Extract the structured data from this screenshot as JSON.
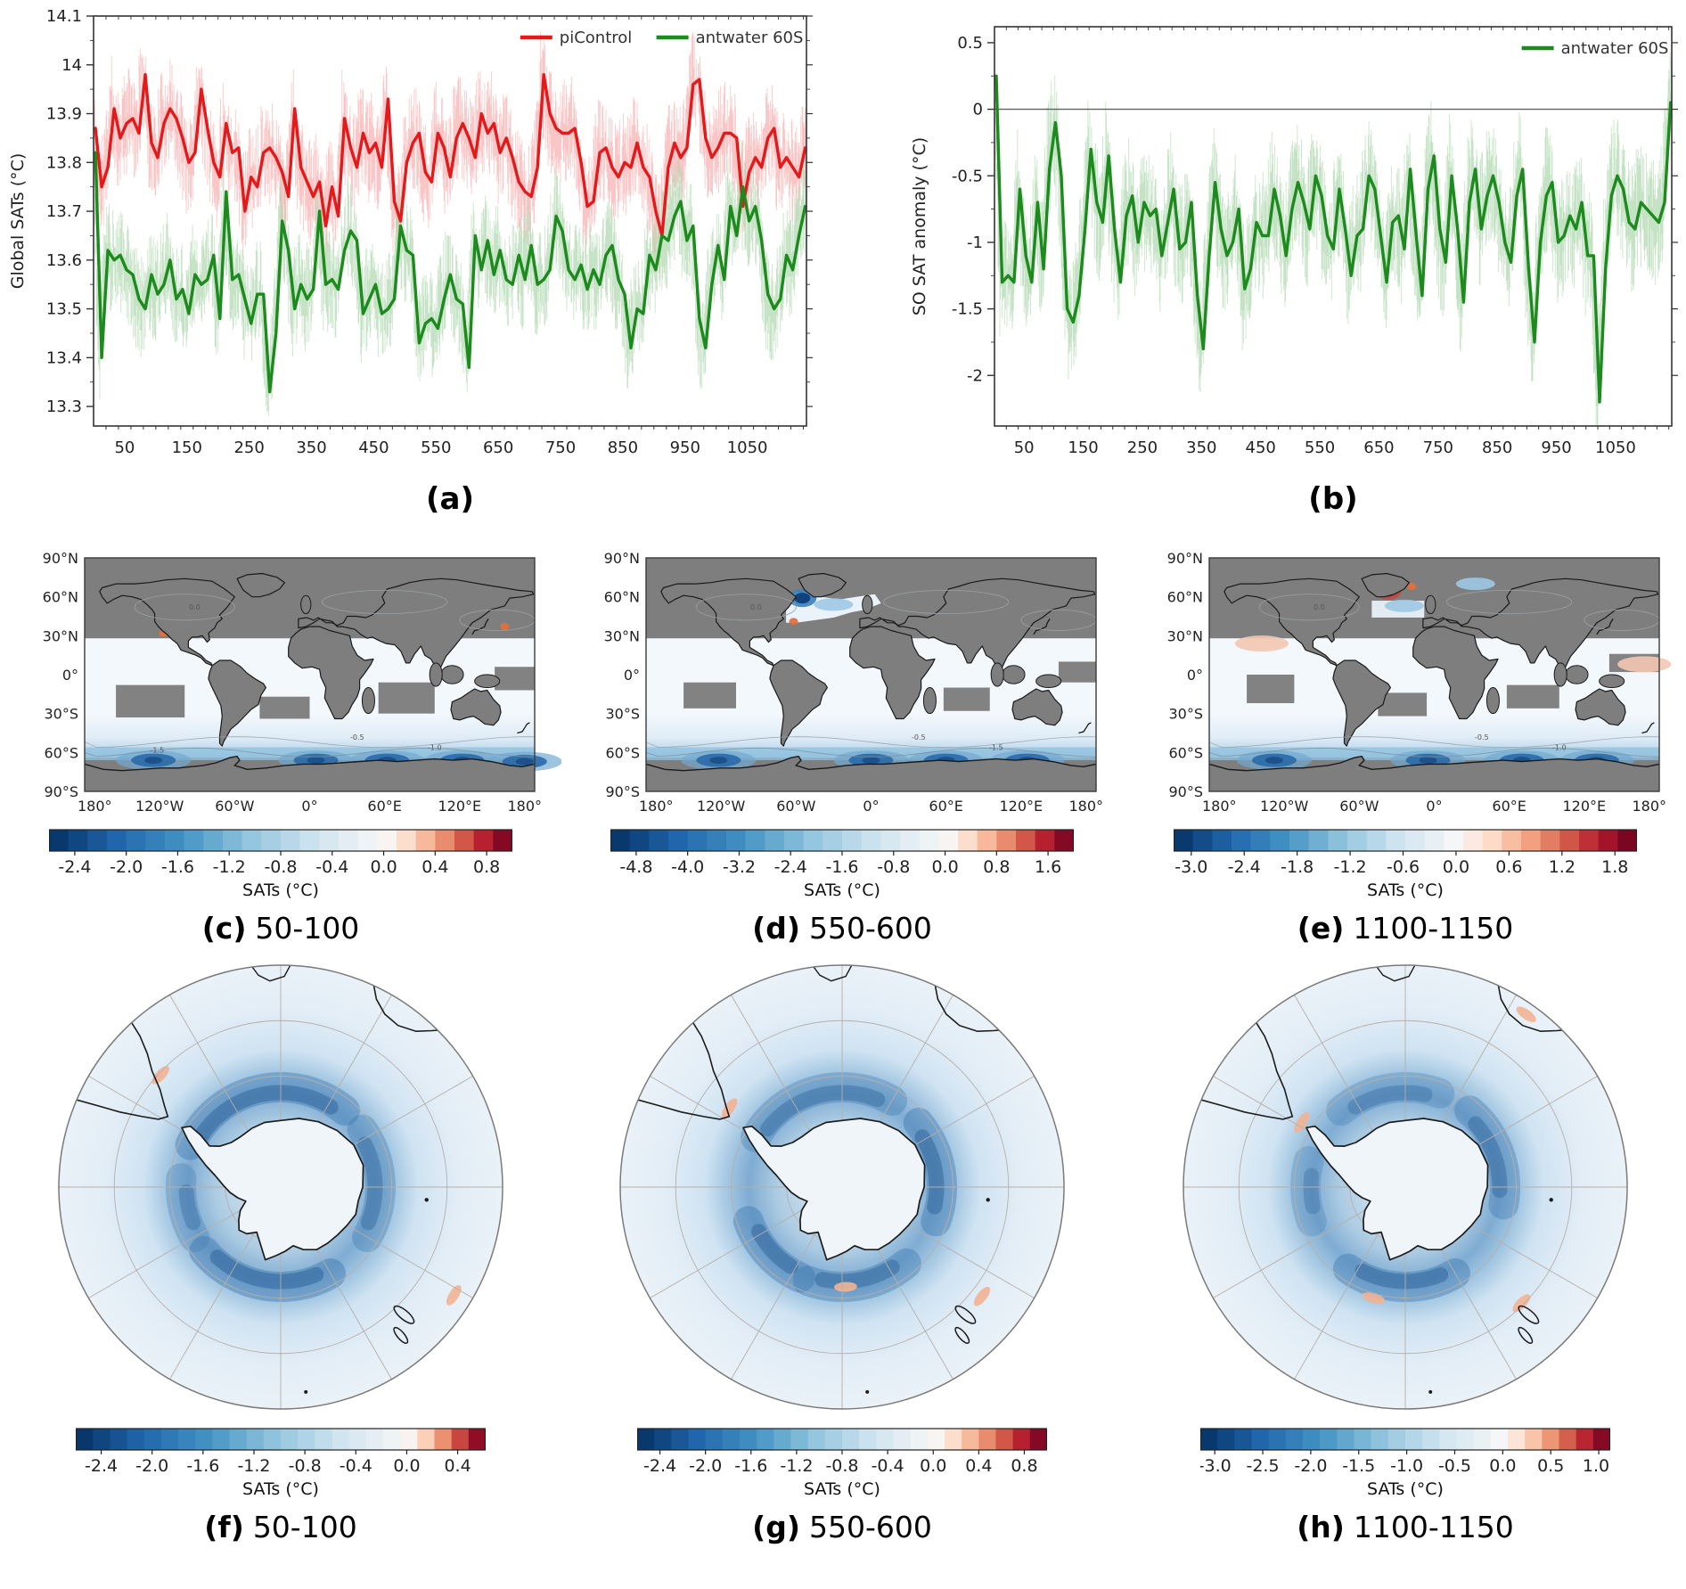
{
  "figure": {
    "background": "#ffffff",
    "mask_color_note": "gray areas = not significant",
    "colors": {
      "picontrol_red": "#e31a1c",
      "antwater_green": "#1c8a1c",
      "map_mask_gray": "#7e7e7e"
    }
  },
  "chart_data": [
    {
      "id": "a",
      "type": "line",
      "caption": "(a)",
      "ylabel": "Global SATs (°C)",
      "xlim": [
        0,
        1145
      ],
      "ylim": [
        13.26,
        14.1
      ],
      "xticks": [
        50,
        150,
        250,
        350,
        450,
        550,
        650,
        750,
        850,
        950,
        1050
      ],
      "yticks": [
        13.3,
        13.4,
        13.5,
        13.6,
        13.7,
        13.8,
        13.9,
        14.0,
        14.1
      ],
      "legend_position": "top-right",
      "x_start": 3,
      "x_step": 10,
      "series": [
        {
          "name": "piControl",
          "color": "#e31a1c",
          "light_color": "#f6a8a8",
          "annual_envelope": 0.11,
          "values": [
            13.87,
            13.75,
            13.79,
            13.91,
            13.85,
            13.88,
            13.89,
            13.86,
            13.98,
            13.84,
            13.81,
            13.88,
            13.91,
            13.89,
            13.85,
            13.8,
            13.82,
            13.95,
            13.87,
            13.8,
            13.77,
            13.88,
            13.82,
            13.83,
            13.7,
            13.77,
            13.75,
            13.82,
            13.83,
            13.81,
            13.78,
            13.73,
            13.91,
            13.79,
            13.76,
            13.73,
            13.76,
            13.67,
            13.75,
            13.69,
            13.89,
            13.83,
            13.79,
            13.86,
            13.82,
            13.84,
            13.79,
            13.93,
            13.72,
            13.68,
            13.8,
            13.84,
            13.86,
            13.78,
            13.76,
            13.86,
            13.83,
            13.77,
            13.85,
            13.88,
            13.85,
            13.81,
            13.9,
            13.86,
            13.88,
            13.82,
            13.85,
            13.81,
            13.76,
            13.74,
            13.73,
            13.79,
            13.98,
            13.9,
            13.87,
            13.86,
            13.86,
            13.87,
            13.8,
            13.71,
            13.72,
            13.82,
            13.83,
            13.79,
            13.77,
            13.8,
            13.79,
            13.84,
            13.79,
            13.77,
            13.7,
            13.65,
            13.79,
            13.84,
            13.81,
            13.83,
            13.96,
            13.97,
            13.85,
            13.81,
            13.83,
            13.86,
            13.86,
            13.85,
            13.71,
            13.78,
            13.81,
            13.79,
            13.85,
            13.87,
            13.79,
            13.81,
            13.79,
            13.77,
            13.83
          ]
        },
        {
          "name": "antwater 60S",
          "color": "#1c8a1c",
          "light_color": "#a8d5a8",
          "annual_envelope": 0.11,
          "values": [
            13.82,
            13.4,
            13.62,
            13.6,
            13.61,
            13.58,
            13.57,
            13.52,
            13.5,
            13.57,
            13.53,
            13.55,
            13.6,
            13.52,
            13.54,
            13.49,
            13.57,
            13.55,
            13.56,
            13.61,
            13.48,
            13.74,
            13.56,
            13.57,
            13.52,
            13.47,
            13.53,
            13.53,
            13.33,
            13.45,
            13.68,
            13.62,
            13.5,
            13.55,
            13.52,
            13.54,
            13.7,
            13.55,
            13.56,
            13.54,
            13.62,
            13.66,
            13.64,
            13.49,
            13.52,
            13.55,
            13.49,
            13.5,
            13.52,
            13.67,
            13.62,
            13.61,
            13.43,
            13.47,
            13.48,
            13.46,
            13.52,
            13.57,
            13.52,
            13.51,
            13.38,
            13.65,
            13.58,
            13.64,
            13.57,
            13.62,
            13.56,
            13.55,
            13.61,
            13.56,
            13.63,
            13.55,
            13.56,
            13.58,
            13.69,
            13.66,
            13.58,
            13.56,
            13.59,
            13.54,
            13.58,
            13.55,
            13.61,
            13.63,
            13.56,
            13.53,
            13.42,
            13.5,
            13.49,
            13.61,
            13.58,
            13.65,
            13.64,
            13.69,
            13.72,
            13.64,
            13.67,
            13.48,
            13.42,
            13.55,
            13.63,
            13.56,
            13.71,
            13.65,
            13.75,
            13.68,
            13.71,
            13.64,
            13.53,
            13.5,
            13.52,
            13.61,
            13.58,
            13.65,
            13.71
          ]
        }
      ]
    },
    {
      "id": "b",
      "type": "line",
      "caption": "(b)",
      "ylabel": "SO SAT anomaly (°C)",
      "xlim": [
        0,
        1145
      ],
      "ylim": [
        -2.38,
        0.62
      ],
      "xticks": [
        50,
        150,
        250,
        350,
        450,
        550,
        650,
        750,
        850,
        950,
        1050
      ],
      "yticks": [
        0.5,
        0,
        -0.5,
        -1,
        -1.5,
        -2
      ],
      "zero_line": 0,
      "legend_position": "top-right",
      "x_start": 3,
      "x_step": 10,
      "series": [
        {
          "name": "antwater 60S",
          "color": "#1c8a1c",
          "light_color": "#a8d5a8",
          "annual_envelope": 0.48,
          "values": [
            0.25,
            -1.3,
            -1.25,
            -1.3,
            -0.6,
            -1.1,
            -1.3,
            -0.7,
            -1.2,
            -0.45,
            -0.1,
            -0.5,
            -1.5,
            -1.6,
            -1.4,
            -0.9,
            -0.3,
            -0.7,
            -0.85,
            -0.35,
            -0.9,
            -1.3,
            -0.8,
            -0.65,
            -1.0,
            -0.7,
            -0.8,
            -0.75,
            -1.1,
            -0.85,
            -0.6,
            -1.05,
            -1.0,
            -0.7,
            -1.4,
            -1.8,
            -1.1,
            -0.55,
            -0.9,
            -1.1,
            -1.0,
            -0.75,
            -1.35,
            -1.2,
            -0.85,
            -0.95,
            -0.95,
            -0.6,
            -0.8,
            -1.1,
            -0.75,
            -0.55,
            -0.7,
            -0.9,
            -0.5,
            -0.65,
            -0.95,
            -1.05,
            -0.6,
            -0.9,
            -1.25,
            -0.95,
            -0.9,
            -0.5,
            -0.6,
            -0.95,
            -1.3,
            -0.85,
            -0.8,
            -1.05,
            -0.45,
            -0.95,
            -1.4,
            -0.6,
            -0.35,
            -0.9,
            -1.15,
            -0.5,
            -0.9,
            -1.45,
            -0.7,
            -0.45,
            -0.9,
            -0.65,
            -0.5,
            -0.7,
            -1.0,
            -1.15,
            -0.65,
            -0.45,
            -1.2,
            -1.75,
            -1.0,
            -0.65,
            -0.55,
            -1.0,
            -0.95,
            -0.8,
            -0.9,
            -0.7,
            -1.1,
            -1.1,
            -2.2,
            -1.2,
            -0.65,
            -0.5,
            -0.6,
            -0.85,
            -0.9,
            -0.7,
            -0.75,
            -0.8,
            -0.85,
            -0.7,
            0.05
          ]
        }
      ]
    },
    {
      "id": "c",
      "type": "heatmap",
      "projection": "global",
      "caption_letter": "(c)",
      "caption_text": "50-100",
      "lat_ticks": [
        "90°N",
        "60°N",
        "30°N",
        "0°",
        "30°S",
        "60°S",
        "90°S"
      ],
      "lon_ticks": [
        "180°",
        "120°W",
        "60°W",
        "0°",
        "60°E",
        "120°E",
        "180°"
      ],
      "colorbar": {
        "label": "SATs (°C)",
        "ticks": [
          -2.4,
          -2.0,
          -1.6,
          -1.2,
          -0.8,
          -0.4,
          0.0,
          0.4,
          0.8
        ],
        "vmin": -2.6,
        "vmax": 1.0
      },
      "contour_labels": [
        "0.0",
        "-0.5",
        "-1.0",
        "-1.5"
      ],
      "natl": "none",
      "gray_patches": [
        [
          -155,
          -8,
          -100,
          -33
        ],
        [
          -40,
          -17,
          0,
          -34
        ],
        [
          55,
          -6,
          100,
          -30
        ],
        [
          148,
          6,
          180,
          -12
        ]
      ],
      "features": [
        {
          "kind": "cold-blob",
          "lon": -125,
          "lat": -66,
          "value": -2.0
        },
        {
          "kind": "cold-blob",
          "lon": 5,
          "lat": -66,
          "value": -1.8
        },
        {
          "kind": "cold-blob",
          "lon": 62,
          "lat": -66,
          "value": -1.6
        },
        {
          "kind": "cold-blob",
          "lon": 122,
          "lat": -66,
          "value": -1.8
        },
        {
          "kind": "cold-blob",
          "lon": 172,
          "lat": -67,
          "value": -2.2
        },
        {
          "kind": "warm-dot",
          "lon": -117,
          "lat": 32,
          "value": 0.4
        },
        {
          "kind": "warm-dot",
          "lon": 156,
          "lat": 37,
          "value": 0.5
        }
      ]
    },
    {
      "id": "d",
      "type": "heatmap",
      "projection": "global",
      "caption_letter": "(d)",
      "caption_text": "550-600",
      "lat_ticks": [
        "90°N",
        "60°N",
        "30°N",
        "0°",
        "30°S",
        "60°S",
        "90°S"
      ],
      "lon_ticks": [
        "180°",
        "120°W",
        "60°W",
        "0°",
        "60°E",
        "120°E",
        "180°"
      ],
      "colorbar": {
        "label": "SATs (°C)",
        "ticks": [
          -4.8,
          -4.0,
          -3.2,
          -2.4,
          -1.6,
          -0.8,
          0.0,
          0.8,
          1.6
        ],
        "vmin": -5.2,
        "vmax": 2.0
      },
      "contour_labels": [
        "0.0",
        "-0.5",
        "-1.5"
      ],
      "natl": "large",
      "gray_patches": [
        [
          -150,
          -6,
          -108,
          -26
        ],
        [
          58,
          -10,
          95,
          -28
        ],
        [
          150,
          10,
          180,
          -6
        ]
      ],
      "features": [
        {
          "kind": "cold-blob",
          "lon": -122,
          "lat": -66,
          "value": -1.6
        },
        {
          "kind": "cold-blob",
          "lon": 0,
          "lat": -66,
          "value": -1.8
        },
        {
          "kind": "cold-blob",
          "lon": 60,
          "lat": -66,
          "value": -1.4
        },
        {
          "kind": "cold-blob",
          "lon": 125,
          "lat": -66,
          "value": -1.5
        },
        {
          "kind": "labrador-blob",
          "lon": -55,
          "lat": 59,
          "value": -4.8
        },
        {
          "kind": "cold-patch",
          "lon": -30,
          "lat": 54,
          "value": -1.0
        },
        {
          "kind": "warm-dot",
          "lon": -62,
          "lat": 41,
          "value": 0.8
        }
      ]
    },
    {
      "id": "e",
      "type": "heatmap",
      "projection": "global",
      "caption_letter": "(e)",
      "caption_text": "1100-1150",
      "lat_ticks": [
        "90°N",
        "60°N",
        "30°N",
        "0°",
        "30°S",
        "60°S",
        "90°S"
      ],
      "lon_ticks": [
        "180°",
        "120°W",
        "60°W",
        "0°",
        "60°E",
        "120°E",
        "180°"
      ],
      "colorbar": {
        "label": "SATs (°C)",
        "ticks": [
          -3.0,
          -2.4,
          -1.8,
          -1.2,
          -0.6,
          0.0,
          0.6,
          1.2,
          1.8
        ],
        "vmin": -3.2,
        "vmax": 2.05
      },
      "contour_labels": [
        "0.0",
        "-0.5",
        "-1.0"
      ],
      "natl": "small",
      "gray_patches": [
        [
          -150,
          0,
          -112,
          -22
        ],
        [
          -45,
          -14,
          -6,
          -32
        ],
        [
          58,
          -8,
          100,
          -26
        ],
        [
          140,
          16,
          180,
          2
        ]
      ],
      "features": [
        {
          "kind": "cold-blob",
          "lon": -128,
          "lat": -66,
          "value": -2.4
        },
        {
          "kind": "cold-blob",
          "lon": -5,
          "lat": -66,
          "value": -1.5
        },
        {
          "kind": "cold-blob",
          "lon": 70,
          "lat": -66,
          "value": -1.3
        },
        {
          "kind": "cold-blob",
          "lon": 130,
          "lat": -66,
          "value": -1.4
        },
        {
          "kind": "warm-blob",
          "lon": -37,
          "lat": 64,
          "value": 1.9
        },
        {
          "kind": "cold-patch",
          "lon": 33,
          "lat": 70,
          "value": -1.2
        },
        {
          "kind": "cold-patch",
          "lon": -24,
          "lat": 53,
          "value": -0.8
        },
        {
          "kind": "warm-patch",
          "lon": -138,
          "lat": 24,
          "value": 0.5
        },
        {
          "kind": "warm-patch",
          "lon": 168,
          "lat": 8,
          "value": 0.4
        },
        {
          "kind": "warm-dot",
          "lon": -18,
          "lat": 68,
          "value": 0.6
        }
      ]
    },
    {
      "id": "f",
      "type": "heatmap",
      "projection": "south-polar",
      "caption_letter": "(f)",
      "caption_text": "50-100",
      "colorbar": {
        "label": "SATs (°C)",
        "ticks": [
          -2.4,
          -2.0,
          -1.6,
          -1.2,
          -0.8,
          -0.4,
          0.0,
          0.4
        ],
        "vmin": -2.6,
        "vmax": 0.62
      },
      "ring_blobs": [
        [
          295,
          40,
          0.85
        ],
        [
          55,
          120,
          0.7
        ],
        [
          150,
          230,
          0.9
        ],
        [
          240,
          275,
          0.6
        ]
      ],
      "warm_spots": [
        {
          "angle": 313,
          "rf": 0.74
        },
        {
          "angle": 122,
          "rf": 0.92
        }
      ]
    },
    {
      "id": "g",
      "type": "heatmap",
      "projection": "south-polar",
      "caption_letter": "(g)",
      "caption_text": "550-600",
      "colorbar": {
        "label": "SATs (°C)",
        "ticks": [
          -2.4,
          -2.0,
          -1.6,
          -1.2,
          -0.8,
          -0.4,
          0.0,
          0.4,
          0.8
        ],
        "vmin": -2.6,
        "vmax": 1.0
      },
      "ring_blobs": [
        [
          300,
          30,
          0.7
        ],
        [
          50,
          110,
          0.85
        ],
        [
          140,
          200,
          0.8
        ],
        [
          205,
          250,
          0.85
        ]
      ],
      "warm_spots": [
        {
          "angle": 178,
          "rf": 0.45
        },
        {
          "angle": 128,
          "rf": 0.8
        },
        {
          "angle": 305,
          "rf": 0.62
        }
      ]
    },
    {
      "id": "h",
      "type": "heatmap",
      "projection": "south-polar",
      "caption_letter": "(h)",
      "caption_text": "1100-1150",
      "colorbar": {
        "label": "SATs (°C)",
        "ticks": [
          -3.0,
          -2.5,
          -2.0,
          -1.5,
          -1.0,
          -0.5,
          0.0,
          0.5,
          1.0
        ],
        "vmin": -3.15,
        "vmax": 1.12
      },
      "ring_blobs": [
        [
          320,
          20,
          0.6
        ],
        [
          40,
          100,
          0.75
        ],
        [
          150,
          215,
          0.85
        ],
        [
          250,
          285,
          0.55
        ]
      ],
      "warm_spots": [
        {
          "angle": 196,
          "rf": 0.52
        },
        {
          "angle": 135,
          "rf": 0.74
        },
        {
          "angle": 302,
          "rf": 0.55
        },
        {
          "angle": 35,
          "rf": 0.95
        }
      ]
    }
  ]
}
